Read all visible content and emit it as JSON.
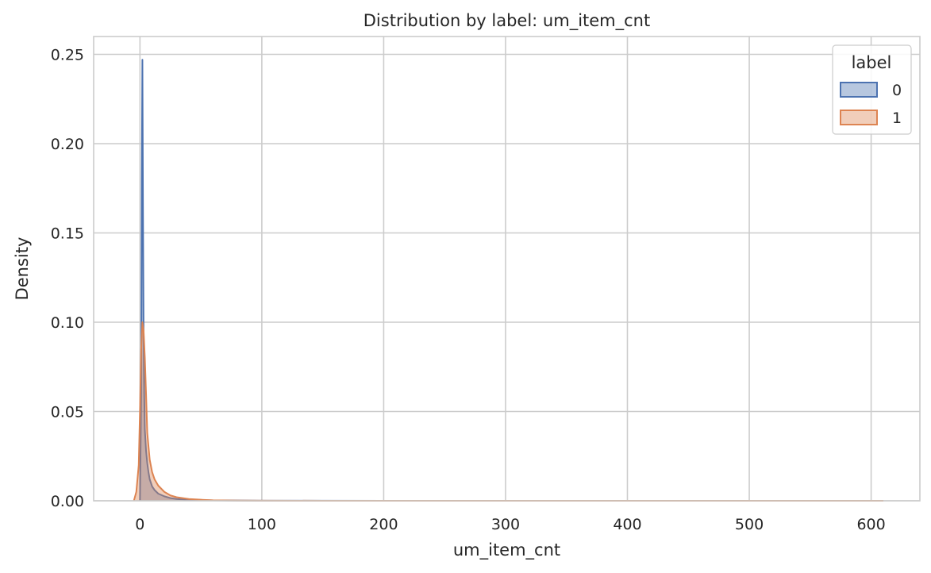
{
  "chart_data": {
    "type": "area",
    "title": "Distribution by label: um_item_cnt",
    "xlabel": "um_item_cnt",
    "ylabel": "Density",
    "xlim": [
      -38,
      640
    ],
    "ylim": [
      0,
      0.26
    ],
    "xticks": [
      0,
      100,
      200,
      300,
      400,
      500,
      600
    ],
    "yticks": [
      0.0,
      0.05,
      0.1,
      0.15,
      0.2,
      0.25
    ],
    "ytick_labels": [
      "0.00",
      "0.05",
      "0.10",
      "0.15",
      "0.20",
      "0.25"
    ],
    "grid": true,
    "legend": {
      "title": "label",
      "placement": "top-right"
    },
    "series": [
      {
        "name": "0",
        "color": "#4c72b0",
        "x": [
          0,
          0.5,
          1,
          1.5,
          2,
          2.5,
          3,
          3.5,
          4,
          5,
          6,
          7,
          8,
          10,
          12,
          15,
          20,
          25,
          30,
          40,
          60,
          100,
          200,
          400,
          600
        ],
        "y": [
          0,
          0.03,
          0.06,
          0.18,
          0.247,
          0.16,
          0.09,
          0.06,
          0.04,
          0.028,
          0.021,
          0.016,
          0.012,
          0.008,
          0.006,
          0.004,
          0.0025,
          0.0015,
          0.001,
          0.0005,
          0.0002,
          5e-05,
          0,
          0,
          0
        ]
      },
      {
        "name": "1",
        "color": "#dd8452",
        "x": [
          -5,
          -3,
          -1,
          0,
          1,
          2,
          3,
          4,
          5,
          6,
          8,
          10,
          12,
          15,
          20,
          25,
          30,
          40,
          50,
          60,
          80,
          100,
          150,
          200,
          300,
          400,
          500,
          610
        ],
        "y": [
          0,
          0.005,
          0.02,
          0.05,
          0.085,
          0.1,
          0.095,
          0.08,
          0.06,
          0.038,
          0.023,
          0.016,
          0.012,
          0.0085,
          0.005,
          0.003,
          0.002,
          0.001,
          0.0006,
          0.0003,
          0.0001,
          5e-05,
          2e-05,
          0,
          0,
          0,
          0,
          0
        ]
      }
    ]
  }
}
